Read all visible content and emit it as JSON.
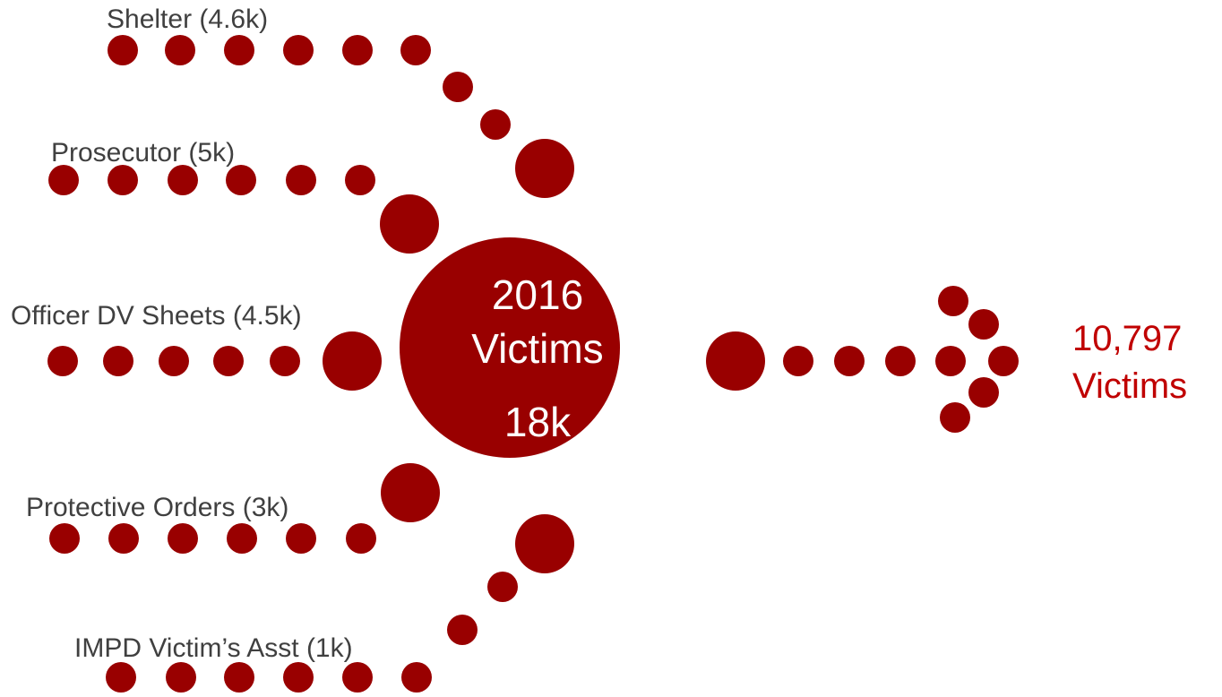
{
  "colors": {
    "dot": "#990000",
    "label_text": "#404040",
    "center_text": "#ffffff",
    "result_text": "#c00000"
  },
  "sources": [
    {
      "label": "Shelter (4.6k)"
    },
    {
      "label": "Prosecutor (5k)"
    },
    {
      "label": "Officer DV Sheets (4.5k)"
    },
    {
      "label": "Protective Orders (3k)"
    },
    {
      "label": "IMPD Victim’s Asst (1k)"
    }
  ],
  "center": {
    "line1": "2016",
    "line2": "Victims",
    "line3": "18k"
  },
  "result": {
    "line1": "10,797",
    "line2": "Victims"
  }
}
